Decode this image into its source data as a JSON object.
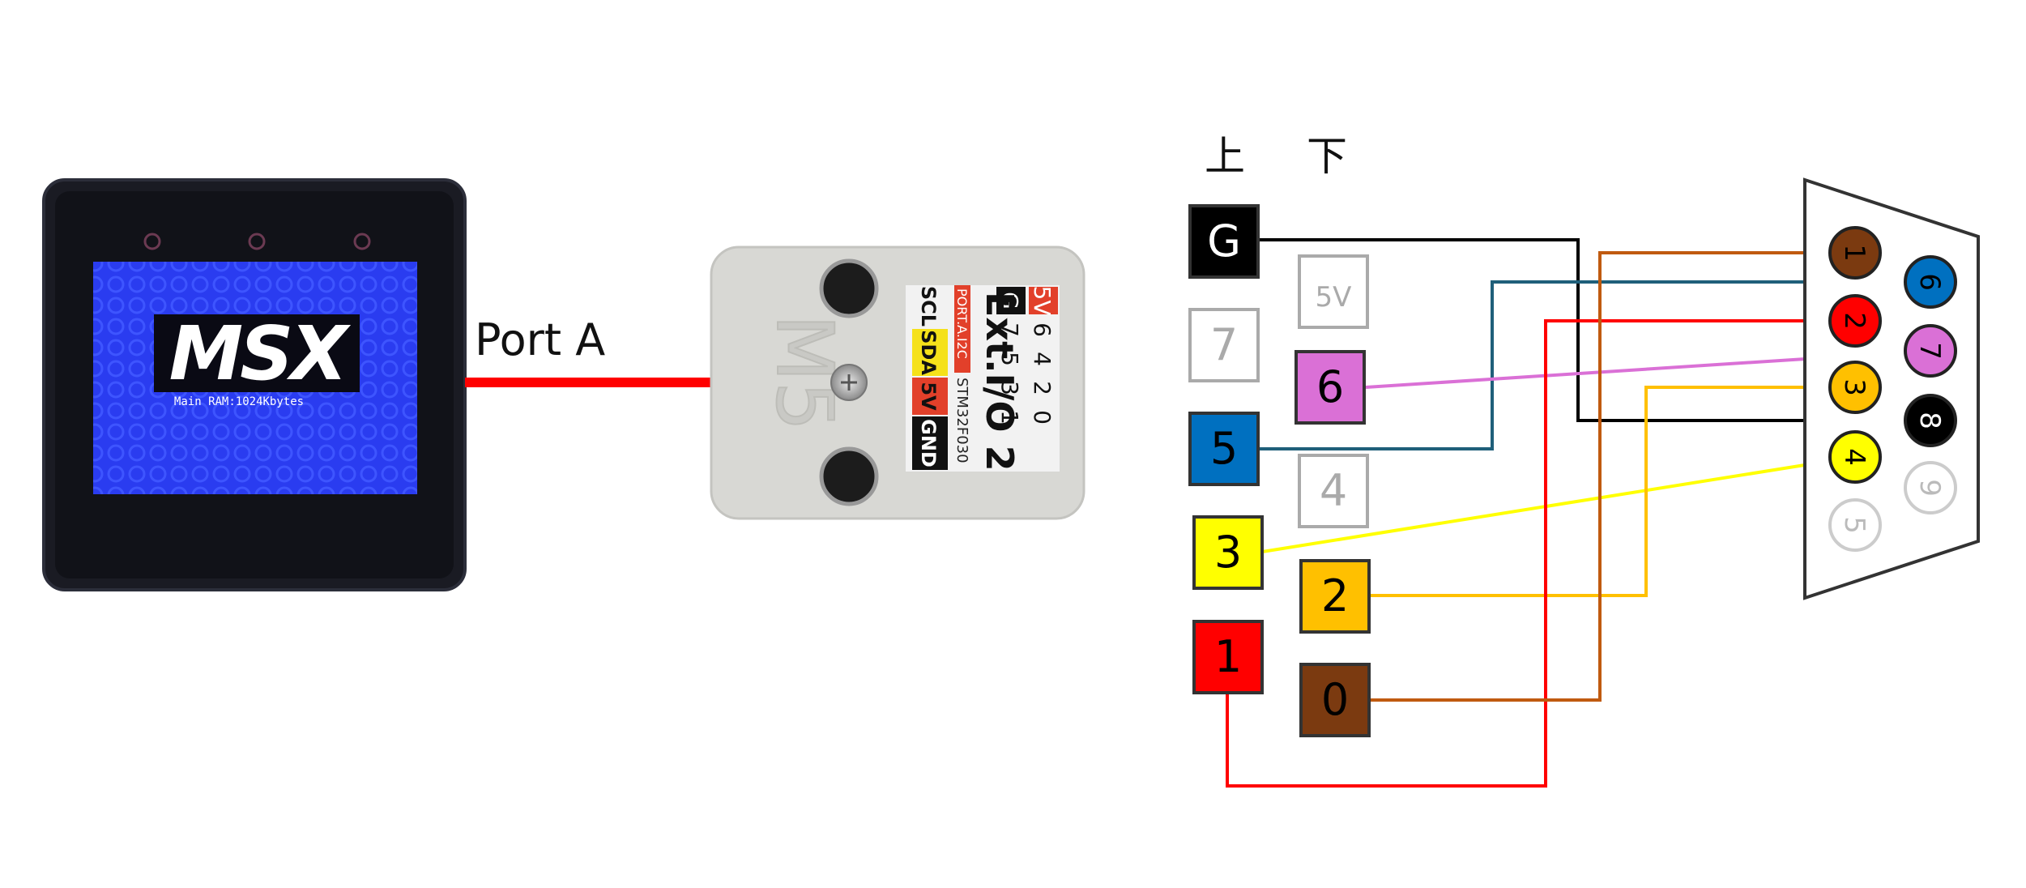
{
  "device": {
    "logo": "MSX",
    "screen_text": "Main RAM:1024Kbytes"
  },
  "connection_label": "Port A",
  "module": {
    "brand": "M5",
    "name": "Ext.I/O 2",
    "chip": "STM32F030",
    "port_label": "PORT.A.I2C",
    "pin_rows": {
      "row1": [
        "5V",
        "6",
        "4",
        "2",
        "0"
      ],
      "row2": [
        "G",
        "7",
        "5",
        "3",
        "1"
      ]
    },
    "bottom_labels": [
      "SCL",
      "SDA",
      "5V",
      "GND"
    ]
  },
  "headers": {
    "upper": "上",
    "lower": "下"
  },
  "io_pins": {
    "upper": [
      {
        "label": "G",
        "color": "#000000",
        "text_color": "#ffffff",
        "connected": true
      },
      {
        "label": "7",
        "color": "#ffffff",
        "text_color": "#aaaaaa",
        "connected": false
      },
      {
        "label": "5",
        "color": "#0070c0",
        "text_color": "#000000",
        "connected": true
      },
      {
        "label": "3",
        "color": "#ffff00",
        "text_color": "#000000",
        "connected": true
      },
      {
        "label": "1",
        "color": "#ff0000",
        "text_color": "#000000",
        "connected": true
      }
    ],
    "lower": [
      {
        "label": "5V",
        "color": "#ffffff",
        "text_color": "#aaaaaa",
        "connected": false
      },
      {
        "label": "6",
        "color": "#da70d6",
        "text_color": "#000000",
        "connected": true
      },
      {
        "label": "4",
        "color": "#ffffff",
        "text_color": "#aaaaaa",
        "connected": false
      },
      {
        "label": "2",
        "color": "#ffc000",
        "text_color": "#000000",
        "connected": true
      },
      {
        "label": "0",
        "color": "#7b3a10",
        "text_color": "#000000",
        "connected": true
      }
    ]
  },
  "dsub_pins": [
    {
      "label": "1",
      "color": "#7b3a10",
      "text_color": "#000000"
    },
    {
      "label": "2",
      "color": "#ff0000",
      "text_color": "#000000"
    },
    {
      "label": "3",
      "color": "#ffc000",
      "text_color": "#000000"
    },
    {
      "label": "4",
      "color": "#ffff00",
      "text_color": "#000000"
    },
    {
      "label": "5",
      "color": "#ffffff",
      "text_color": "#bbbbbb"
    },
    {
      "label": "6",
      "color": "#0070c0",
      "text_color": "#000000"
    },
    {
      "label": "7",
      "color": "#da70d6",
      "text_color": "#000000"
    },
    {
      "label": "8",
      "color": "#000000",
      "text_color": "#ffffff"
    },
    {
      "label": "9",
      "color": "#ffffff",
      "text_color": "#bbbbbb"
    }
  ],
  "wire_colors": {
    "port_cable": "#ff0000",
    "G": "#000000",
    "5": "#1f5f7a",
    "3": "#ffff00",
    "1": "#ff0000",
    "6": "#da70d6",
    "2": "#ffc000",
    "0": "#c05a10"
  }
}
